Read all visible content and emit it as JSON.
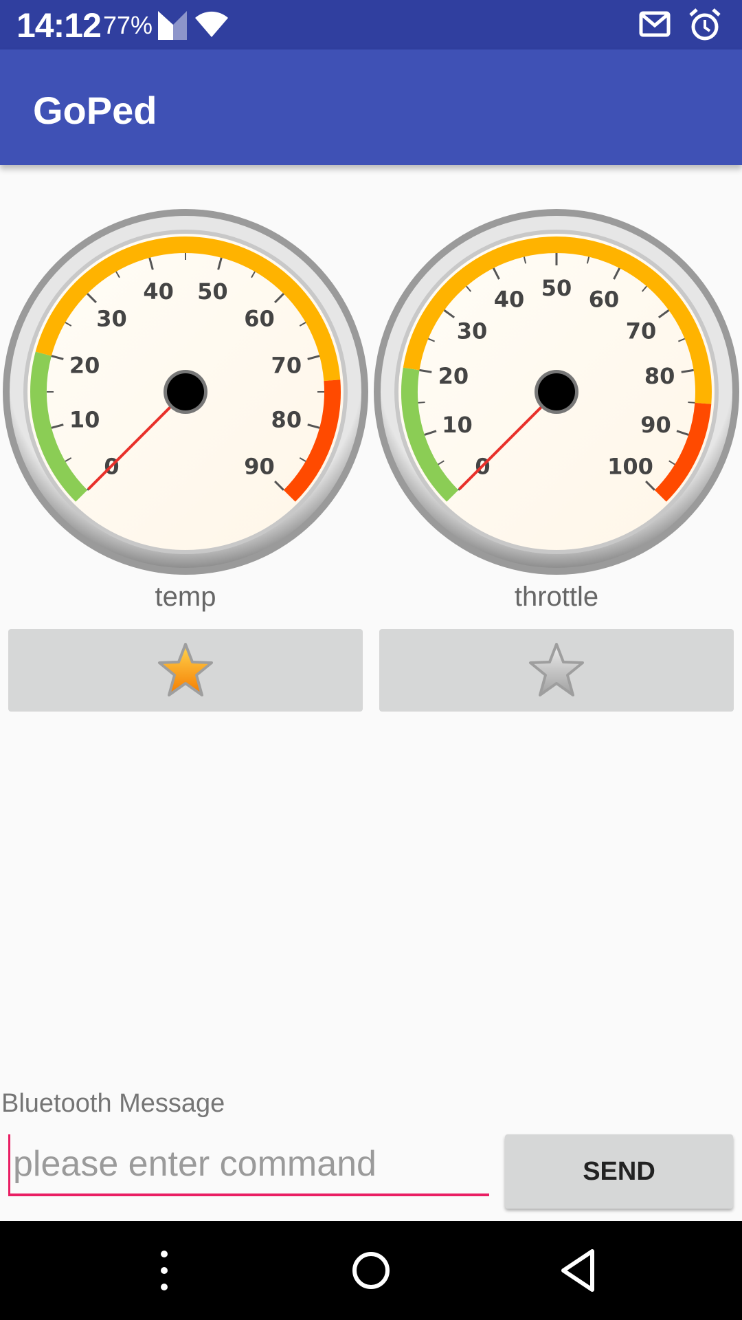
{
  "status_bar": {
    "time": "14:12",
    "battery": "77%",
    "icons": [
      "signal-icon",
      "wifi-icon",
      "mail-icon",
      "alarm-icon"
    ]
  },
  "app_bar": {
    "title": "GoPed"
  },
  "gauges": [
    {
      "label": "temp",
      "ticks": [
        "0",
        "10",
        "20",
        "30",
        "40",
        "50",
        "60",
        "70",
        "80",
        "90"
      ],
      "value": 0,
      "favorite": true
    },
    {
      "label": "throttle",
      "ticks": [
        "0",
        "10",
        "20",
        "30",
        "40",
        "50",
        "60",
        "70",
        "80",
        "90",
        "100"
      ],
      "value": 0,
      "favorite": false
    }
  ],
  "bluetooth": {
    "label": "Bluetooth Message",
    "placeholder": "please enter command",
    "value": "",
    "send_label": "SEND"
  },
  "nav": {
    "icons": [
      "more-vert-icon",
      "home-icon",
      "back-icon"
    ]
  },
  "colors": {
    "primary_dark": "#303f9f",
    "primary": "#3f51b5",
    "accent": "#e91e63",
    "gauge_green": "#8bcd55",
    "gauge_orange": "#ffb300",
    "gauge_red": "#ff4a00",
    "needle": "#e8302a"
  }
}
